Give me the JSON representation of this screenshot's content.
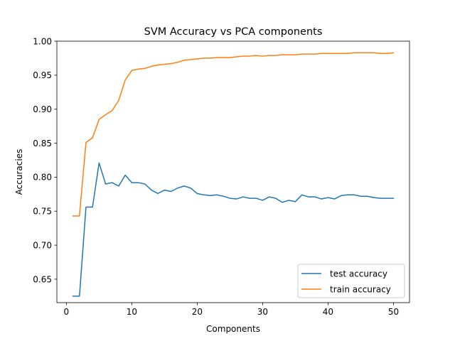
{
  "chart_data": {
    "type": "line",
    "title": "SVM Accuracy vs PCA components",
    "xlabel": "Components",
    "ylabel": "Accuracies",
    "xlim": [
      -1.45,
      52.45
    ],
    "ylim": [
      0.6155,
      1.0
    ],
    "xticks": [
      0,
      10,
      20,
      30,
      40,
      50
    ],
    "xtick_labels": [
      "0",
      "10",
      "20",
      "30",
      "40",
      "50"
    ],
    "yticks": [
      0.65,
      0.7,
      0.75,
      0.8,
      0.85,
      0.9,
      0.95,
      1.0
    ],
    "ytick_labels": [
      "0.65",
      "0.70",
      "0.75",
      "0.80",
      "0.85",
      "0.90",
      "0.95",
      "1.00"
    ],
    "grid": false,
    "legend_position": "lower-right",
    "x": [
      1,
      2,
      3,
      4,
      5,
      6,
      7,
      8,
      9,
      10,
      11,
      12,
      13,
      14,
      15,
      16,
      17,
      18,
      19,
      20,
      21,
      22,
      23,
      24,
      25,
      26,
      27,
      28,
      29,
      30,
      31,
      32,
      33,
      34,
      35,
      36,
      37,
      38,
      39,
      40,
      41,
      42,
      43,
      44,
      45,
      46,
      47,
      48,
      49,
      50
    ],
    "series": [
      {
        "name": "test accuracy",
        "color": "#1f77b4",
        "values": [
          0.625,
          0.625,
          0.756,
          0.756,
          0.821,
          0.79,
          0.792,
          0.787,
          0.803,
          0.792,
          0.792,
          0.79,
          0.781,
          0.776,
          0.781,
          0.779,
          0.784,
          0.787,
          0.784,
          0.776,
          0.774,
          0.773,
          0.774,
          0.772,
          0.769,
          0.768,
          0.771,
          0.769,
          0.769,
          0.766,
          0.771,
          0.769,
          0.763,
          0.766,
          0.764,
          0.774,
          0.771,
          0.771,
          0.768,
          0.77,
          0.768,
          0.773,
          0.774,
          0.774,
          0.772,
          0.772,
          0.77,
          0.769,
          0.769,
          0.769
        ]
      },
      {
        "name": "train accuracy",
        "color": "#ff7f0e",
        "values": [
          0.743,
          0.743,
          0.851,
          0.858,
          0.885,
          0.892,
          0.898,
          0.913,
          0.943,
          0.957,
          0.959,
          0.96,
          0.963,
          0.965,
          0.966,
          0.967,
          0.969,
          0.972,
          0.973,
          0.974,
          0.975,
          0.975,
          0.976,
          0.976,
          0.976,
          0.977,
          0.978,
          0.978,
          0.979,
          0.978,
          0.979,
          0.979,
          0.98,
          0.98,
          0.98,
          0.981,
          0.981,
          0.981,
          0.982,
          0.982,
          0.982,
          0.982,
          0.982,
          0.983,
          0.983,
          0.983,
          0.983,
          0.982,
          0.982,
          0.983
        ]
      }
    ]
  }
}
